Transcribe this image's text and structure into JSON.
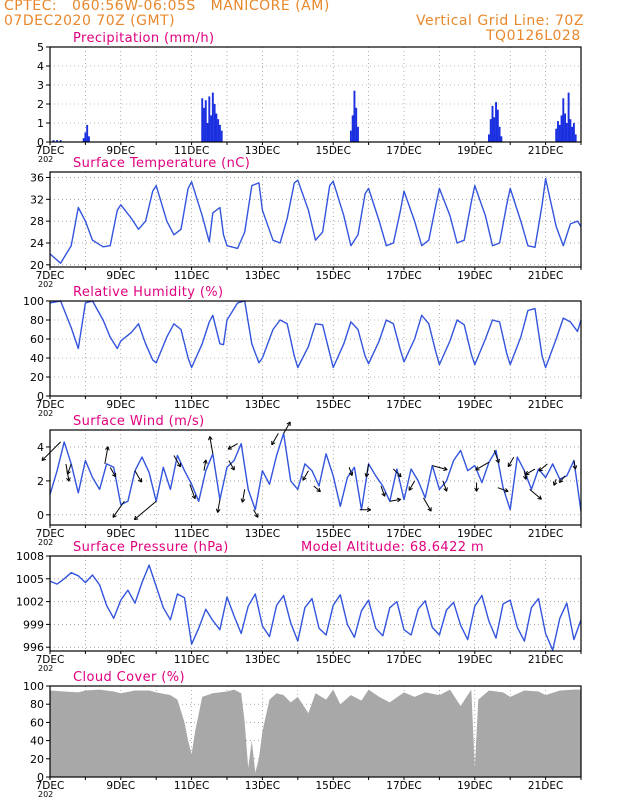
{
  "header": {
    "line1": "CPTEC:   060:56W-06:05S   MANICORE (AM)",
    "line2": "07DEC2020 70Z (GMT)",
    "grid_note": "Vertical Grid Line: 70Z",
    "code": "TQ0126L028",
    "model_altitude": "Model Altitude: 68.6422 m"
  },
  "colors": {
    "header": "#e8882c",
    "title": "#e0007f",
    "line": "#3355dd",
    "bar": "#1a2fe0",
    "cloud": "#a8a8a8",
    "arrow": "#000000"
  },
  "x_tick_labels": [
    "7DEC",
    "9DEC",
    "11DEC",
    "13DEC",
    "15DEC",
    "17DEC",
    "19DEC",
    "21DEC"
  ],
  "x_year_stub": "202",
  "chart_data": [
    {
      "id": "precip",
      "type": "bar",
      "title": "Precipitation (mm/h)",
      "ylim": [
        0,
        5
      ],
      "yticks": [
        0,
        1,
        2,
        3,
        4,
        5
      ],
      "grid": true,
      "x_days": [
        7,
        22
      ],
      "bars": [
        [
          7.1,
          0.1
        ],
        [
          7.2,
          0.1
        ],
        [
          7.3,
          0.1
        ],
        [
          7.95,
          0.2
        ],
        [
          8.0,
          0.5
        ],
        [
          8.05,
          0.9
        ],
        [
          8.1,
          0.3
        ],
        [
          11.3,
          2.3
        ],
        [
          11.35,
          1.8
        ],
        [
          11.4,
          2.2
        ],
        [
          11.45,
          1.0
        ],
        [
          11.5,
          2.4
        ],
        [
          11.55,
          1.4
        ],
        [
          11.6,
          2.6
        ],
        [
          11.65,
          2.0
        ],
        [
          11.7,
          1.5
        ],
        [
          11.75,
          1.2
        ],
        [
          11.8,
          0.9
        ],
        [
          11.85,
          0.6
        ],
        [
          15.5,
          0.6
        ],
        [
          15.55,
          1.4
        ],
        [
          15.6,
          2.7
        ],
        [
          15.65,
          1.8
        ],
        [
          15.7,
          0.8
        ],
        [
          19.4,
          0.4
        ],
        [
          19.45,
          1.2
        ],
        [
          19.5,
          1.9
        ],
        [
          19.55,
          1.3
        ],
        [
          19.6,
          2.1
        ],
        [
          19.65,
          1.7
        ],
        [
          19.7,
          0.8
        ],
        [
          19.75,
          0.3
        ],
        [
          21.3,
          0.7
        ],
        [
          21.35,
          1.1
        ],
        [
          21.4,
          0.9
        ],
        [
          21.45,
          1.4
        ],
        [
          21.5,
          2.3
        ],
        [
          21.55,
          1.5
        ],
        [
          21.6,
          1.0
        ],
        [
          21.65,
          2.6
        ],
        [
          21.7,
          1.2
        ],
        [
          21.75,
          0.8
        ],
        [
          21.8,
          1.0
        ],
        [
          21.85,
          0.4
        ]
      ]
    },
    {
      "id": "temp",
      "type": "line",
      "title": "Surface Temperature (nC)",
      "ylim": [
        19.6,
        37
      ],
      "yticks": [
        20,
        24,
        28,
        32,
        36
      ],
      "grid": true,
      "x": [
        7,
        7.3,
        7.6,
        7.8,
        8.0,
        8.2,
        8.5,
        8.7,
        8.9,
        9.0,
        9.3,
        9.5,
        9.7,
        9.9,
        10.0,
        10.3,
        10.5,
        10.7,
        10.9,
        11.0,
        11.3,
        11.5,
        11.6,
        11.8,
        11.9,
        12.0,
        12.3,
        12.5,
        12.7,
        12.9,
        13.0,
        13.3,
        13.5,
        13.7,
        13.9,
        14.0,
        14.3,
        14.5,
        14.7,
        14.9,
        15.0,
        15.3,
        15.5,
        15.7,
        15.9,
        16.0,
        16.3,
        16.5,
        16.7,
        16.9,
        17.0,
        17.3,
        17.5,
        17.7,
        17.9,
        18.0,
        18.3,
        18.5,
        18.7,
        18.9,
        19.0,
        19.3,
        19.5,
        19.7,
        19.9,
        20.0,
        20.3,
        20.5,
        20.7,
        20.9,
        21.0,
        21.3,
        21.5,
        21.7,
        21.9,
        22.0
      ],
      "y": [
        22,
        20.3,
        23.5,
        30.5,
        28,
        24.5,
        23.3,
        23.5,
        30,
        31,
        28.5,
        26.5,
        28,
        33.5,
        34.5,
        28,
        25.5,
        26.5,
        34,
        35.2,
        29,
        24.2,
        29.5,
        30.5,
        25.5,
        23.5,
        23,
        26,
        34.5,
        35,
        30,
        24.5,
        24,
        28.5,
        35,
        35.5,
        30,
        24.5,
        26,
        34.5,
        35.3,
        29,
        23.5,
        25.5,
        33,
        34,
        28,
        23.5,
        24,
        30,
        33.5,
        28,
        23.5,
        24.5,
        31,
        34,
        29,
        24,
        24.5,
        31.5,
        34.5,
        29,
        23.5,
        24,
        31,
        34,
        28,
        23.5,
        23.2,
        31,
        35.8,
        27,
        23.5,
        27.5,
        28,
        27
      ]
    },
    {
      "id": "rh",
      "type": "line",
      "title": "Relative Humidity (%)",
      "ylim": [
        0,
        100
      ],
      "yticks": [
        0,
        20,
        40,
        60,
        80,
        100
      ],
      "grid": true,
      "x": [
        7,
        7.3,
        7.6,
        7.8,
        8.0,
        8.2,
        8.5,
        8.7,
        8.9,
        9.0,
        9.3,
        9.5,
        9.7,
        9.9,
        10.0,
        10.3,
        10.5,
        10.7,
        10.9,
        11.0,
        11.3,
        11.5,
        11.6,
        11.8,
        11.9,
        12.0,
        12.3,
        12.5,
        12.7,
        12.9,
        13.0,
        13.3,
        13.5,
        13.7,
        13.9,
        14.0,
        14.3,
        14.5,
        14.7,
        14.9,
        15.0,
        15.3,
        15.5,
        15.7,
        15.9,
        16.0,
        16.3,
        16.5,
        16.7,
        16.9,
        17.0,
        17.3,
        17.5,
        17.7,
        17.9,
        18.0,
        18.3,
        18.5,
        18.7,
        18.9,
        19.0,
        19.3,
        19.5,
        19.7,
        19.9,
        20.0,
        20.3,
        20.5,
        20.7,
        20.9,
        21.0,
        21.3,
        21.5,
        21.7,
        21.9,
        22.0
      ],
      "y": [
        98,
        100,
        72,
        50,
        98,
        100,
        80,
        62,
        50,
        58,
        67,
        76,
        55,
        38,
        35,
        62,
        76,
        70,
        40,
        30,
        55,
        78,
        85,
        55,
        54,
        80,
        98,
        100,
        55,
        35,
        40,
        70,
        80,
        76,
        42,
        30,
        52,
        76,
        75,
        45,
        30,
        55,
        78,
        70,
        42,
        34,
        58,
        80,
        76,
        48,
        36,
        60,
        85,
        76,
        46,
        33,
        58,
        80,
        75,
        44,
        33,
        60,
        80,
        78,
        45,
        33,
        62,
        90,
        92,
        42,
        30,
        60,
        82,
        78,
        68,
        80
      ]
    },
    {
      "id": "wind",
      "type": "line",
      "title": "Surface Wind (m/s)",
      "ylim": [
        -0.6,
        5.0
      ],
      "yticks": [
        0,
        2,
        4
      ],
      "grid": true,
      "x": [
        7,
        7.2,
        7.4,
        7.6,
        7.8,
        8.0,
        8.2,
        8.4,
        8.6,
        8.8,
        9.0,
        9.2,
        9.4,
        9.6,
        9.8,
        10.0,
        10.2,
        10.4,
        10.6,
        10.8,
        11.0,
        11.2,
        11.4,
        11.6,
        11.8,
        12.0,
        12.2,
        12.4,
        12.6,
        12.8,
        13.0,
        13.2,
        13.4,
        13.6,
        13.8,
        14.0,
        14.2,
        14.4,
        14.6,
        14.8,
        15.0,
        15.2,
        15.4,
        15.6,
        15.8,
        16.0,
        16.2,
        16.4,
        16.6,
        16.8,
        17.0,
        17.2,
        17.4,
        17.6,
        17.8,
        18.0,
        18.2,
        18.4,
        18.6,
        18.8,
        19.0,
        19.2,
        19.4,
        19.6,
        19.8,
        20.0,
        20.2,
        20.4,
        20.6,
        20.8,
        21.0,
        21.2,
        21.4,
        21.6,
        21.8,
        22.0
      ],
      "y": [
        1.2,
        2.6,
        4.3,
        3.0,
        1.3,
        3.2,
        2.2,
        1.5,
        3.0,
        2.8,
        0.6,
        0.8,
        2.6,
        3.4,
        2.5,
        0.8,
        2.8,
        1.5,
        3.5,
        2.6,
        1.8,
        0.8,
        2.6,
        3.6,
        0.9,
        2.8,
        3.2,
        4.2,
        1.5,
        0.3,
        2.6,
        1.8,
        3.5,
        4.8,
        2.0,
        1.5,
        3.0,
        2.6,
        1.7,
        3.6,
        2.3,
        0.5,
        2.2,
        2.8,
        0.3,
        3.0,
        2.3,
        1.7,
        0.8,
        2.7,
        0.9,
        2.7,
        2.0,
        1.0,
        2.9,
        1.5,
        2.0,
        3.2,
        3.8,
        2.6,
        2.9,
        1.9,
        3.1,
        3.8,
        1.6,
        0.3,
        3.4,
        2.6,
        1.5,
        2.7,
        2.2,
        3.0,
        2.1,
        2.3,
        3.2,
        0.2
      ],
      "arrows": [
        [
          7.3,
          -135,
          2.4
        ],
        [
          7.45,
          -80,
          1.6
        ],
        [
          7.6,
          -110,
          1.0
        ],
        [
          8.55,
          80,
          1.6
        ],
        [
          8.7,
          -60,
          1.0
        ],
        [
          9.1,
          -125,
          1.8
        ],
        [
          9.4,
          -60,
          1.2
        ],
        [
          10.0,
          -140,
          2.6
        ],
        [
          10.5,
          -60,
          1.2
        ],
        [
          10.95,
          -70,
          1.4
        ],
        [
          11.35,
          80,
          1.0
        ],
        [
          11.6,
          100,
          1.6
        ],
        [
          11.8,
          -100,
          1.2
        ],
        [
          12.05,
          -60,
          1.0
        ],
        [
          12.3,
          -150,
          1.0
        ],
        [
          12.5,
          -100,
          1.2
        ],
        [
          12.75,
          -60,
          0.8
        ],
        [
          13.45,
          -120,
          1.2
        ],
        [
          13.6,
          60,
          1.2
        ],
        [
          14.3,
          -120,
          1.0
        ],
        [
          14.45,
          -40,
          0.8
        ],
        [
          15.45,
          -70,
          0.8
        ],
        [
          15.75,
          0,
          1.0
        ],
        [
          16.0,
          -100,
          1.2
        ],
        [
          16.35,
          -70,
          1.0
        ],
        [
          16.6,
          10,
          1.0
        ],
        [
          16.7,
          -45,
          1.0
        ],
        [
          17.3,
          -120,
          1.0
        ],
        [
          17.55,
          -60,
          1.4
        ],
        [
          17.8,
          -15,
          1.4
        ],
        [
          18.1,
          -70,
          1.0
        ],
        [
          19.05,
          -90,
          0.8
        ],
        [
          19.4,
          -150,
          1.4
        ],
        [
          19.55,
          -70,
          1.2
        ],
        [
          19.65,
          -20,
          1.0
        ],
        [
          20.1,
          -120,
          1.0
        ],
        [
          20.4,
          -80,
          0.8
        ],
        [
          20.55,
          -40,
          1.4
        ],
        [
          20.7,
          -150,
          1.0
        ],
        [
          21.05,
          -140,
          1.0
        ],
        [
          21.3,
          -110,
          0.6
        ],
        [
          21.55,
          -130,
          0.8
        ],
        [
          21.8,
          -80,
          0.8
        ]
      ]
    },
    {
      "id": "press",
      "type": "line",
      "title": "Surface Pressure (hPa)",
      "ylim": [
        995.5,
        1008
      ],
      "yticks": [
        996,
        999,
        1002,
        1005,
        1008
      ],
      "grid": true,
      "x": [
        7,
        7.2,
        7.4,
        7.6,
        7.8,
        8.0,
        8.2,
        8.4,
        8.6,
        8.8,
        9.0,
        9.2,
        9.4,
        9.6,
        9.8,
        10.0,
        10.2,
        10.4,
        10.6,
        10.8,
        11.0,
        11.2,
        11.4,
        11.6,
        11.8,
        12.0,
        12.2,
        12.4,
        12.6,
        12.8,
        13.0,
        13.2,
        13.4,
        13.6,
        13.8,
        14.0,
        14.2,
        14.4,
        14.6,
        14.8,
        15.0,
        15.2,
        15.4,
        15.6,
        15.8,
        16.0,
        16.2,
        16.4,
        16.6,
        16.8,
        17.0,
        17.2,
        17.4,
        17.6,
        17.8,
        18.0,
        18.2,
        18.4,
        18.6,
        18.8,
        19.0,
        19.2,
        19.4,
        19.6,
        19.8,
        20.0,
        20.2,
        20.4,
        20.6,
        20.8,
        21.0,
        21.2,
        21.4,
        21.6,
        21.8,
        22.0
      ],
      "y": [
        1004.7,
        1004.3,
        1005.0,
        1005.8,
        1005.4,
        1004.5,
        1005.5,
        1004.2,
        1001.5,
        999.8,
        1002.2,
        1003.5,
        1001.8,
        1004.5,
        1006.8,
        1004.0,
        1001.2,
        999.6,
        1003.0,
        1002.5,
        996.4,
        998.5,
        1001.0,
        999.5,
        998.3,
        1002.6,
        1000.1,
        997.8,
        1001.4,
        1003.0,
        998.8,
        997.4,
        1001.5,
        1002.8,
        999.2,
        996.8,
        1001.2,
        1002.4,
        998.5,
        997.6,
        1001.5,
        1002.9,
        999.0,
        997.3,
        1000.8,
        1002.2,
        998.5,
        997.5,
        1001.2,
        1002.0,
        998.3,
        997.6,
        1001.0,
        1002.1,
        998.6,
        997.6,
        1000.9,
        1001.9,
        998.9,
        997.0,
        1001.4,
        1002.8,
        999.4,
        997.2,
        1001.7,
        1002.2,
        998.6,
        996.8,
        1001.2,
        1002.4,
        997.8,
        995.6,
        999.8,
        1001.8,
        997.0,
        999.6
      ]
    },
    {
      "id": "cloud",
      "type": "area",
      "title": "Cloud Cover (%)",
      "ylim": [
        0,
        100
      ],
      "yticks": [
        0,
        20,
        40,
        60,
        80,
        100
      ],
      "grid": true,
      "x": [
        7,
        7.4,
        7.8,
        8.0,
        8.4,
        8.8,
        9.0,
        9.4,
        9.8,
        10.0,
        10.4,
        10.6,
        10.8,
        10.9,
        11.0,
        11.1,
        11.3,
        11.6,
        12.0,
        12.2,
        12.4,
        12.5,
        12.6,
        12.7,
        12.8,
        12.9,
        13.0,
        13.2,
        13.4,
        13.6,
        13.8,
        14.0,
        14.3,
        14.5,
        14.8,
        15.0,
        15.2,
        15.5,
        15.8,
        16.0,
        16.3,
        16.6,
        17.0,
        17.3,
        17.6,
        18.0,
        18.3,
        18.6,
        18.9,
        19.0,
        19.1,
        19.4,
        19.8,
        20.0,
        20.4,
        20.8,
        21.0,
        21.4,
        21.8,
        22.0
      ],
      "y": [
        95,
        94,
        93,
        95,
        96,
        94,
        92,
        95,
        95,
        93,
        90,
        85,
        60,
        40,
        25,
        50,
        88,
        92,
        94,
        96,
        92,
        60,
        10,
        40,
        5,
        20,
        50,
        85,
        92,
        90,
        82,
        88,
        70,
        92,
        85,
        96,
        80,
        90,
        84,
        96,
        88,
        82,
        93,
        88,
        93,
        90,
        96,
        78,
        96,
        10,
        85,
        95,
        93,
        88,
        95,
        94,
        90,
        95,
        96,
        96
      ]
    }
  ]
}
